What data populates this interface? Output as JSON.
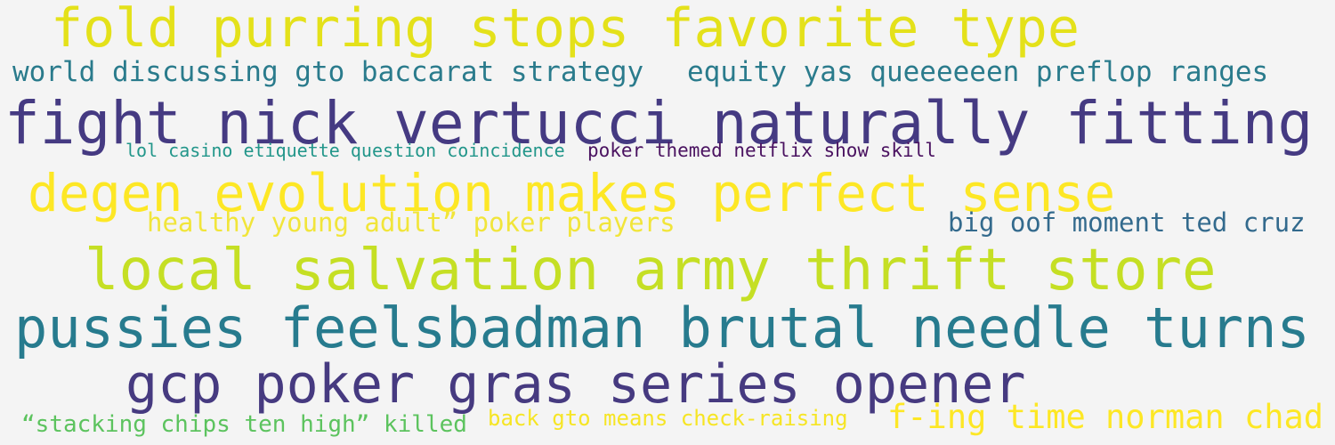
{
  "words": [
    {
      "text": "fold purring stops favorite type",
      "color": "#e4e11a"
    },
    {
      "text": "world discussing gto baccarat strategy",
      "color": "#2a7b8c"
    },
    {
      "text": "equity yas queeeeeen preflop ranges",
      "color": "#2a7b8c"
    },
    {
      "text": "fight nick vertucci naturally fitting",
      "color": "#453a82"
    },
    {
      "text": "lol casino etiquette question coincidence",
      "color": "#22968a"
    },
    {
      "text": "poker themed netflix show skill",
      "color": "#4a1260"
    },
    {
      "text": "degen evolution makes perfect sense",
      "color": "#fde725"
    },
    {
      "text": "healthy young adult” poker players",
      "color": "#f1e53a"
    },
    {
      "text": "big oof moment ted cruz",
      "color": "#336a8d"
    },
    {
      "text": "local salvation army thrift store",
      "color": "#c5df24"
    },
    {
      "text": "pussies feelsbadman brutal needle turns",
      "color": "#277b8e"
    },
    {
      "text": "gcp poker gras series opener",
      "color": "#463a80"
    },
    {
      "text": "“stacking chips ten high” killed",
      "color": "#5cc35e"
    },
    {
      "text": "back gto means check-raising",
      "color": "#f6e524"
    },
    {
      "text": "f-ing time norman chad",
      "color": "#fde725"
    }
  ]
}
